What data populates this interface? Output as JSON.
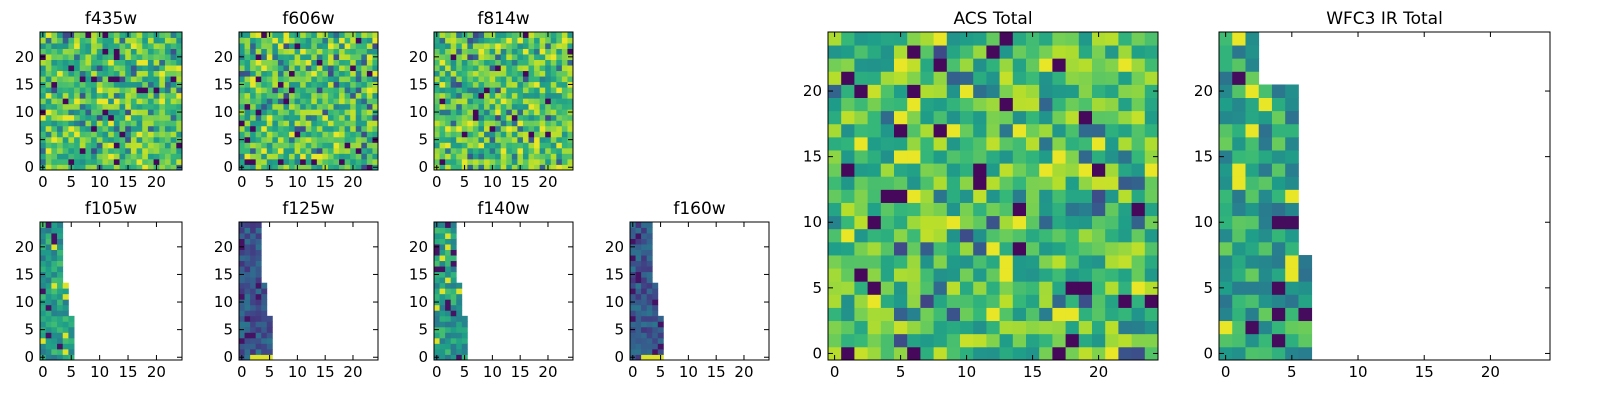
{
  "chart_data": {
    "type": "heatmap",
    "colormap": "viridis",
    "panels": [
      {
        "id": "f435w",
        "title": "f435w",
        "xlim": [
          -0.5,
          24.5
        ],
        "ylim": [
          -0.5,
          24.5
        ],
        "xticks": [
          "0",
          "5",
          "10",
          "15",
          "20"
        ],
        "yticks": [
          "0",
          "5",
          "10",
          "15",
          "20"
        ],
        "coverage": "full"
      },
      {
        "id": "f606w",
        "title": "f606w",
        "xlim": [
          -0.5,
          24.5
        ],
        "ylim": [
          -0.5,
          24.5
        ],
        "xticks": [
          "0",
          "5",
          "10",
          "15",
          "20"
        ],
        "yticks": [
          "0",
          "5",
          "10",
          "15",
          "20"
        ],
        "coverage": "full"
      },
      {
        "id": "f814w",
        "title": "f814w",
        "xlim": [
          -0.5,
          24.5
        ],
        "ylim": [
          -0.5,
          24.5
        ],
        "xticks": [
          "0",
          "5",
          "10",
          "15",
          "20"
        ],
        "yticks": [
          "0",
          "5",
          "10",
          "15",
          "20"
        ],
        "coverage": "full"
      },
      {
        "id": "f105w",
        "title": "f105w",
        "xlim": [
          -0.5,
          24.5
        ],
        "ylim": [
          -0.5,
          24.5
        ],
        "xticks": [
          "0",
          "5",
          "10",
          "15",
          "20"
        ],
        "yticks": [
          "0",
          "5",
          "10",
          "15",
          "20"
        ],
        "coverage": "partial",
        "filled_x_range": [
          0,
          5
        ]
      },
      {
        "id": "f125w",
        "title": "f125w",
        "xlim": [
          -0.5,
          24.5
        ],
        "ylim": [
          -0.5,
          24.5
        ],
        "xticks": [
          "0",
          "5",
          "10",
          "15",
          "20"
        ],
        "yticks": [
          "0",
          "5",
          "10",
          "15",
          "20"
        ],
        "coverage": "partial",
        "filled_x_range": [
          0,
          6
        ]
      },
      {
        "id": "f140w",
        "title": "f140w",
        "xlim": [
          -0.5,
          24.5
        ],
        "ylim": [
          -0.5,
          24.5
        ],
        "xticks": [
          "0",
          "5",
          "10",
          "15",
          "20"
        ],
        "yticks": [
          "0",
          "5",
          "10",
          "15",
          "20"
        ],
        "coverage": "partial",
        "filled_x_range": [
          0,
          5
        ]
      },
      {
        "id": "f160w",
        "title": "f160w",
        "xlim": [
          -0.5,
          24.5
        ],
        "ylim": [
          -0.5,
          24.5
        ],
        "xticks": [
          "0",
          "5",
          "10",
          "15",
          "20"
        ],
        "yticks": [
          "0",
          "5",
          "10",
          "15",
          "20"
        ],
        "coverage": "partial",
        "filled_x_range": [
          0,
          6
        ]
      },
      {
        "id": "acs-total",
        "title": "ACS Total",
        "xlim": [
          -0.5,
          24.5
        ],
        "ylim": [
          -0.5,
          24.5
        ],
        "xticks": [
          "0",
          "5",
          "10",
          "15",
          "20"
        ],
        "yticks": [
          "0",
          "5",
          "10",
          "15",
          "20"
        ],
        "coverage": "full"
      },
      {
        "id": "wfc3-ir-total",
        "title": "WFC3 IR Total",
        "xlim": [
          -0.5,
          24.5
        ],
        "ylim": [
          -0.5,
          24.5
        ],
        "xticks": [
          "0",
          "5",
          "10",
          "15",
          "20"
        ],
        "yticks": [
          "0",
          "5",
          "10",
          "15",
          "20"
        ],
        "coverage": "partial",
        "filled_x_range": [
          0,
          6
        ]
      }
    ]
  }
}
